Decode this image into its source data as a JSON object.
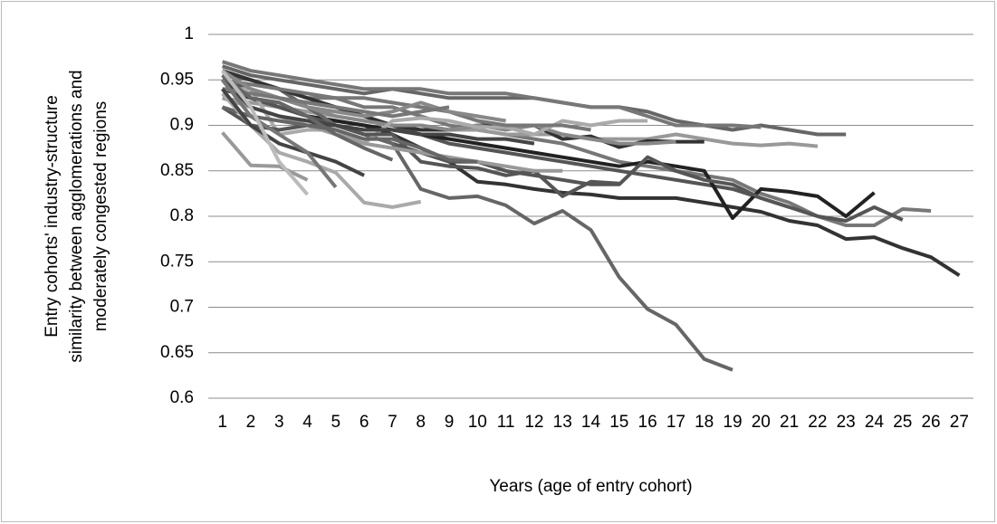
{
  "chart_data": {
    "type": "line",
    "y_label": [
      "Entry cohorts' industry-structure",
      "similarity between agglomerations and",
      "moderately congested regions"
    ],
    "x_label": "Years (age of entry cohort)",
    "categories": [
      1,
      2,
      3,
      4,
      5,
      6,
      7,
      8,
      9,
      10,
      11,
      12,
      13,
      14,
      15,
      16,
      17,
      18,
      19,
      20,
      21,
      22,
      23,
      24,
      25,
      26,
      27
    ],
    "ylim": [
      0.6,
      1
    ],
    "yticks": [
      0.6,
      0.65,
      0.7,
      0.75,
      0.8,
      0.85,
      0.9,
      0.95,
      1
    ],
    "grid": true,
    "series": [
      {
        "color": "#333333",
        "values": [
          0.955,
          0.93,
          0.92,
          0.91,
          0.905,
          0.9,
          0.89,
          0.875,
          0.86,
          0.838,
          0.835,
          0.83,
          0.826,
          0.824,
          0.82,
          0.82,
          0.82,
          0.815,
          0.81,
          0.805,
          0.795,
          0.79,
          0.775,
          0.777,
          0.765,
          0.755,
          0.735
        ]
      },
      {
        "color": "#777777",
        "values": [
          0.96,
          0.95,
          0.94,
          0.93,
          0.93,
          0.92,
          0.92,
          0.91,
          0.9,
          0.895,
          0.89,
          0.885,
          0.88,
          0.87,
          0.86,
          0.855,
          0.85,
          0.845,
          0.84,
          0.825,
          0.815,
          0.8,
          0.79,
          0.79,
          0.808,
          0.806,
          null
        ]
      },
      {
        "color": "#555555",
        "values": [
          0.95,
          0.94,
          0.93,
          0.925,
          0.92,
          0.91,
          0.9,
          0.89,
          0.88,
          0.875,
          0.87,
          0.865,
          0.86,
          0.855,
          0.85,
          0.845,
          0.84,
          0.835,
          0.83,
          0.82,
          0.81,
          0.8,
          0.795,
          0.81,
          0.796,
          null,
          null
        ]
      },
      {
        "color": "#222222",
        "values": [
          0.94,
          0.93,
          0.92,
          0.91,
          0.905,
          0.9,
          0.895,
          0.89,
          0.885,
          0.88,
          0.875,
          0.87,
          0.865,
          0.86,
          0.855,
          0.86,
          0.855,
          0.85,
          0.798,
          0.83,
          0.827,
          0.822,
          0.8,
          0.826,
          null,
          null,
          null
        ]
      },
      {
        "color": "#666666",
        "values": [
          0.965,
          0.955,
          0.95,
          0.945,
          0.94,
          0.935,
          0.94,
          0.935,
          0.93,
          0.93,
          0.93,
          0.93,
          0.925,
          0.92,
          0.92,
          0.915,
          0.905,
          0.9,
          0.895,
          0.9,
          0.895,
          0.89,
          0.89,
          null,
          null,
          null,
          null
        ]
      },
      {
        "color": "#999999",
        "values": [
          0.93,
          0.925,
          0.92,
          0.915,
          0.91,
          0.905,
          0.9,
          0.9,
          0.895,
          0.895,
          0.89,
          0.89,
          0.89,
          0.885,
          0.885,
          0.885,
          0.89,
          0.885,
          0.88,
          0.878,
          0.88,
          0.877,
          null,
          null,
          null,
          null,
          null
        ]
      },
      {
        "color": "#555555",
        "values": [
          0.95,
          0.93,
          0.92,
          0.91,
          0.9,
          0.89,
          0.88,
          0.87,
          0.86,
          0.86,
          0.85,
          0.845,
          0.84,
          0.835,
          0.835,
          0.865,
          0.85,
          0.84,
          0.835,
          0.82,
          0.81,
          null,
          null,
          null,
          null,
          null,
          null
        ]
      },
      {
        "color": "#777777",
        "values": [
          0.97,
          0.96,
          0.955,
          0.95,
          0.945,
          0.94,
          0.94,
          0.94,
          0.935,
          0.935,
          0.935,
          0.93,
          0.925,
          0.92,
          0.92,
          0.91,
          0.9,
          0.9,
          0.9,
          0.898,
          null,
          null,
          null,
          null,
          null,
          null,
          null
        ]
      },
      {
        "color": "#666666",
        "values": [
          0.955,
          0.95,
          0.94,
          0.92,
          0.9,
          0.89,
          0.88,
          0.83,
          0.82,
          0.822,
          0.812,
          0.792,
          0.806,
          0.785,
          0.733,
          0.698,
          0.681,
          0.643,
          0.631,
          null,
          null,
          null,
          null,
          null,
          null,
          null,
          null
        ]
      },
      {
        "color": "#333333",
        "values": [
          0.96,
          0.95,
          0.94,
          0.93,
          0.92,
          0.91,
          0.9,
          0.895,
          0.895,
          0.9,
          0.9,
          0.9,
          0.885,
          0.888,
          0.876,
          0.883,
          0.882,
          0.882,
          null,
          null,
          null,
          null,
          null,
          null,
          null,
          null,
          null
        ]
      },
      {
        "color": "#888888",
        "values": [
          0.94,
          0.935,
          0.93,
          0.92,
          0.91,
          0.905,
          0.9,
          0.9,
          0.895,
          0.9,
          0.895,
          0.9,
          0.89,
          0.885,
          0.88,
          0.88,
          0.882,
          null,
          null,
          null,
          null,
          null,
          null,
          null,
          null,
          null,
          null
        ]
      },
      {
        "color": "#aaaaaa",
        "values": [
          0.94,
          0.94,
          0.89,
          0.895,
          0.895,
          0.88,
          0.905,
          0.908,
          0.905,
          0.898,
          0.898,
          0.89,
          0.905,
          0.9,
          0.905,
          0.905,
          null,
          null,
          null,
          null,
          null,
          null,
          null,
          null,
          null,
          null,
          null
        ]
      },
      {
        "color": "#555555",
        "values": [
          0.92,
          0.9,
          0.895,
          0.9,
          0.9,
          0.89,
          0.89,
          0.86,
          0.855,
          0.853,
          0.845,
          0.85,
          0.822,
          0.838,
          0.836,
          null,
          null,
          null,
          null,
          null,
          null,
          null,
          null,
          null,
          null,
          null,
          null
        ]
      },
      {
        "color": "#777777",
        "values": [
          0.95,
          0.945,
          0.94,
          0.935,
          0.93,
          0.93,
          0.925,
          0.92,
          0.915,
          0.905,
          0.9,
          0.9,
          0.9,
          0.895,
          null,
          null,
          null,
          null,
          null,
          null,
          null,
          null,
          null,
          null,
          null,
          null,
          null
        ]
      },
      {
        "color": "#999999",
        "values": [
          0.93,
          0.92,
          0.91,
          0.9,
          0.89,
          0.88,
          0.875,
          0.87,
          0.865,
          0.86,
          0.855,
          0.85,
          0.85,
          null,
          null,
          null,
          null,
          null,
          null,
          null,
          null,
          null,
          null,
          null,
          null,
          null,
          null
        ]
      },
      {
        "color": "#444444",
        "values": [
          0.95,
          0.92,
          0.91,
          0.905,
          0.9,
          0.895,
          0.895,
          0.89,
          0.89,
          0.885,
          0.885,
          0.88,
          null,
          null,
          null,
          null,
          null,
          null,
          null,
          null,
          null,
          null,
          null,
          null,
          null,
          null,
          null
        ]
      },
      {
        "color": "#888888",
        "values": [
          0.96,
          0.94,
          0.93,
          0.92,
          0.915,
          0.91,
          0.915,
          0.925,
          0.915,
          0.91,
          0.905,
          null,
          null,
          null,
          null,
          null,
          null,
          null,
          null,
          null,
          null,
          null,
          null,
          null,
          null,
          null,
          null
        ]
      },
      {
        "color": "#666666",
        "values": [
          0.92,
          0.91,
          0.905,
          0.9,
          0.895,
          0.885,
          0.885,
          0.875,
          0.862,
          0.86,
          null,
          null,
          null,
          null,
          null,
          null,
          null,
          null,
          null,
          null,
          null,
          null,
          null,
          null,
          null,
          null,
          null
        ]
      },
      {
        "color": "#777777",
        "values": [
          0.94,
          0.935,
          0.93,
          0.925,
          0.92,
          0.915,
          0.91,
          0.915,
          0.92,
          null,
          null,
          null,
          null,
          null,
          null,
          null,
          null,
          null,
          null,
          null,
          null,
          null,
          null,
          null,
          null,
          null,
          null
        ]
      },
      {
        "color": "#aaaaaa",
        "values": [
          0.935,
          0.9,
          0.87,
          0.86,
          0.848,
          0.815,
          0.81,
          0.816,
          null,
          null,
          null,
          null,
          null,
          null,
          null,
          null,
          null,
          null,
          null,
          null,
          null,
          null,
          null,
          null,
          null,
          null,
          null
        ]
      },
      {
        "color": "#666666",
        "values": [
          0.955,
          0.93,
          0.925,
          0.91,
          0.89,
          0.875,
          0.862,
          null,
          null,
          null,
          null,
          null,
          null,
          null,
          null,
          null,
          null,
          null,
          null,
          null,
          null,
          null,
          null,
          null,
          null,
          null,
          null
        ]
      },
      {
        "color": "#444444",
        "values": [
          0.94,
          0.9,
          0.88,
          0.87,
          0.86,
          0.845,
          null,
          null,
          null,
          null,
          null,
          null,
          null,
          null,
          null,
          null,
          null,
          null,
          null,
          null,
          null,
          null,
          null,
          null,
          null,
          null,
          null
        ]
      },
      {
        "color": "#777777",
        "values": [
          0.95,
          0.91,
          0.89,
          0.87,
          0.832,
          null,
          null,
          null,
          null,
          null,
          null,
          null,
          null,
          null,
          null,
          null,
          null,
          null,
          null,
          null,
          null,
          null,
          null,
          null,
          null,
          null,
          null
        ]
      },
      {
        "color": "#999999",
        "values": [
          0.892,
          0.856,
          0.855,
          0.84,
          null,
          null,
          null,
          null,
          null,
          null,
          null,
          null,
          null,
          null,
          null,
          null,
          null,
          null,
          null,
          null,
          null,
          null,
          null,
          null,
          null,
          null,
          null
        ]
      },
      {
        "color": "#bbbbbb",
        "values": [
          0.96,
          0.92,
          0.86,
          0.824,
          null,
          null,
          null,
          null,
          null,
          null,
          null,
          null,
          null,
          null,
          null,
          null,
          null,
          null,
          null,
          null,
          null,
          null,
          null,
          null,
          null,
          null,
          null
        ]
      }
    ]
  }
}
